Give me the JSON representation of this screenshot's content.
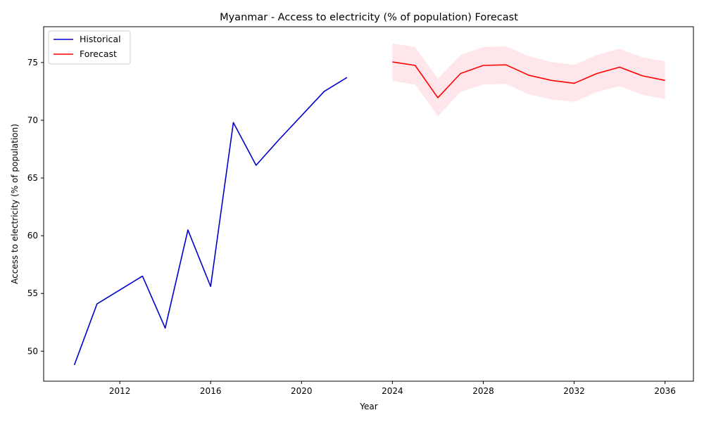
{
  "chart_data": {
    "type": "line",
    "title": "Myanmar - Access to electricity (% of population) Forecast",
    "xlabel": "Year",
    "ylabel": "Access to electricity (% of population)",
    "xlim": [
      2008.65,
      2037.25
    ],
    "ylim": [
      47.4,
      78.1
    ],
    "xticks": [
      2012,
      2016,
      2020,
      2024,
      2028,
      2032,
      2036
    ],
    "yticks": [
      50,
      55,
      60,
      65,
      70,
      75
    ],
    "grid": false,
    "legend_position": "top-left",
    "series": [
      {
        "name": "Historical",
        "color": "#0000cd",
        "x": [
          2010,
          2011,
          2012,
          2013,
          2014,
          2015,
          2016,
          2017,
          2018,
          2019,
          2020,
          2021,
          2022
        ],
        "y": [
          48.8,
          54.1,
          55.3,
          56.5,
          52.0,
          60.5,
          55.6,
          69.8,
          66.1,
          68.3,
          70.4,
          72.5,
          73.7
        ]
      },
      {
        "name": "Forecast",
        "color": "#ff0000",
        "band_color": "#ffc0cb",
        "x": [
          2024,
          2025,
          2026,
          2027,
          2028,
          2029,
          2030,
          2031,
          2032,
          2033,
          2034,
          2035,
          2036
        ],
        "y": [
          75.05,
          74.75,
          71.95,
          74.05,
          74.75,
          74.8,
          73.9,
          73.45,
          73.2,
          74.05,
          74.6,
          73.85,
          73.45
        ],
        "lower": [
          73.4,
          73.1,
          70.35,
          72.45,
          73.1,
          73.15,
          72.25,
          71.8,
          71.6,
          72.45,
          72.95,
          72.2,
          71.85
        ],
        "upper": [
          76.65,
          76.35,
          73.6,
          75.65,
          76.35,
          76.4,
          75.55,
          75.05,
          74.8,
          75.65,
          76.2,
          75.45,
          75.1
        ]
      }
    ]
  }
}
